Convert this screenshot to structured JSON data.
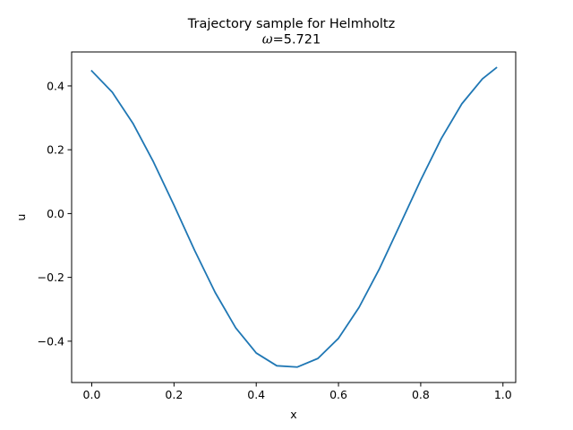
{
  "chart_data": {
    "type": "line",
    "title": "Trajectory sample for Helmholtz",
    "subtitle": {
      "symbol": "ω",
      "value_text": "=5.721"
    },
    "xlabel": "x",
    "ylabel": "u",
    "xlim": [
      -0.049,
      1.031
    ],
    "ylim": [
      -0.5295,
      0.5065
    ],
    "xticks": [
      0.0,
      0.2,
      0.4,
      0.6,
      0.8,
      1.0
    ],
    "xtick_labels": [
      "0.0",
      "0.2",
      "0.4",
      "0.6",
      "0.8",
      "1.0"
    ],
    "yticks": [
      -0.4,
      -0.2,
      0.0,
      0.2,
      0.4
    ],
    "ytick_labels": [
      "−0.4",
      "−0.2",
      "0.0",
      "0.2",
      "0.4"
    ],
    "grid": false,
    "legend": "none",
    "series": [
      {
        "color": "#1f77b4",
        "x": [
          0.0,
          0.05,
          0.1,
          0.15,
          0.2,
          0.25,
          0.3,
          0.35,
          0.4,
          0.45,
          0.5,
          0.55,
          0.6,
          0.65,
          0.7,
          0.75,
          0.8,
          0.85,
          0.9,
          0.95,
          0.984
        ],
        "y": [
          0.447,
          0.38,
          0.283,
          0.162,
          0.026,
          -0.115,
          -0.247,
          -0.358,
          -0.437,
          -0.477,
          -0.481,
          -0.454,
          -0.391,
          -0.294,
          -0.172,
          -0.034,
          0.105,
          0.235,
          0.344,
          0.422,
          0.457
        ]
      }
    ]
  }
}
